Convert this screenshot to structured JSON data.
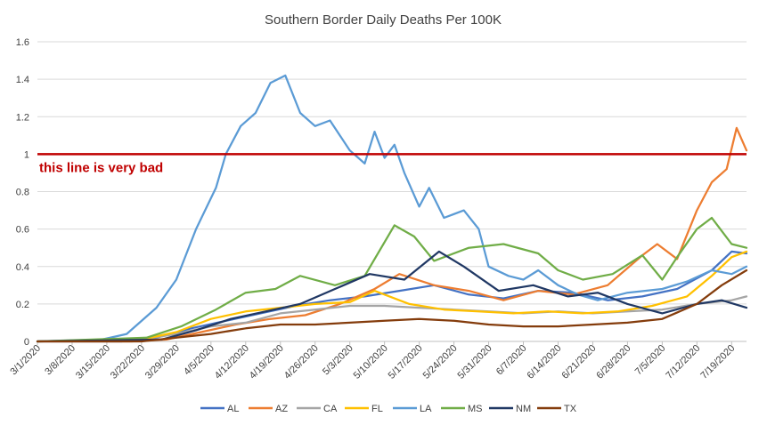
{
  "chart_data": {
    "type": "line",
    "title": "Southern Border Daily Deaths Per 100K",
    "xlabel": "",
    "ylabel": "",
    "ylim": [
      0,
      1.6
    ],
    "y_ticks": [
      "0",
      "0.2",
      "0.4",
      "0.6",
      "0.8",
      "1",
      "1.2",
      "1.4",
      "1.6"
    ],
    "x_start": "2020-03-01",
    "x_end": "2020-07-22",
    "x_ticks": [
      "3/1/2020",
      "3/8/2020",
      "3/15/2020",
      "3/22/2020",
      "3/29/2020",
      "4/5/2020",
      "4/12/2020",
      "4/19/2020",
      "4/26/2020",
      "5/3/2020",
      "5/10/2020",
      "5/17/2020",
      "5/24/2020",
      "5/31/2020",
      "6/7/2020",
      "6/14/2020",
      "6/21/2020",
      "6/28/2020",
      "7/5/2020",
      "7/12/2020",
      "7/19/2020"
    ],
    "grid": "horizontal",
    "legend_position": "bottom",
    "reference_line": {
      "y": 1,
      "label": "this line is very bad",
      "color": "#c00000"
    },
    "series": [
      {
        "name": "AL",
        "color": "#4472c4",
        "points": [
          [
            "2020-03-01",
            0
          ],
          [
            "2020-03-18",
            0
          ],
          [
            "2020-03-25",
            0.02
          ],
          [
            "2020-04-01",
            0.07
          ],
          [
            "2020-04-08",
            0.11
          ],
          [
            "2020-04-15",
            0.15
          ],
          [
            "2020-04-22",
            0.19
          ],
          [
            "2020-04-29",
            0.22
          ],
          [
            "2020-05-06",
            0.24
          ],
          [
            "2020-05-13",
            0.27
          ],
          [
            "2020-05-20",
            0.3
          ],
          [
            "2020-05-27",
            0.25
          ],
          [
            "2020-06-03",
            0.23
          ],
          [
            "2020-06-10",
            0.27
          ],
          [
            "2020-06-17",
            0.26
          ],
          [
            "2020-06-24",
            0.22
          ],
          [
            "2020-07-01",
            0.24
          ],
          [
            "2020-07-08",
            0.28
          ],
          [
            "2020-07-15",
            0.38
          ],
          [
            "2020-07-19",
            0.48
          ],
          [
            "2020-07-22",
            0.47
          ]
        ]
      },
      {
        "name": "AZ",
        "color": "#ed7d31",
        "points": [
          [
            "2020-03-01",
            0
          ],
          [
            "2020-03-20",
            0
          ],
          [
            "2020-03-27",
            0.01
          ],
          [
            "2020-04-03",
            0.05
          ],
          [
            "2020-04-10",
            0.09
          ],
          [
            "2020-04-17",
            0.12
          ],
          [
            "2020-04-24",
            0.14
          ],
          [
            "2020-05-01",
            0.2
          ],
          [
            "2020-05-08",
            0.28
          ],
          [
            "2020-05-13",
            0.36
          ],
          [
            "2020-05-20",
            0.3
          ],
          [
            "2020-05-27",
            0.27
          ],
          [
            "2020-06-03",
            0.22
          ],
          [
            "2020-06-10",
            0.27
          ],
          [
            "2020-06-17",
            0.25
          ],
          [
            "2020-06-24",
            0.3
          ],
          [
            "2020-07-01",
            0.46
          ],
          [
            "2020-07-04",
            0.52
          ],
          [
            "2020-07-08",
            0.44
          ],
          [
            "2020-07-12",
            0.7
          ],
          [
            "2020-07-15",
            0.85
          ],
          [
            "2020-07-18",
            0.92
          ],
          [
            "2020-07-20",
            1.14
          ],
          [
            "2020-07-22",
            1.02
          ]
        ]
      },
      {
        "name": "CA",
        "color": "#a5a5a5",
        "points": [
          [
            "2020-03-01",
            0
          ],
          [
            "2020-03-22",
            0.01
          ],
          [
            "2020-03-29",
            0.04
          ],
          [
            "2020-04-05",
            0.08
          ],
          [
            "2020-04-12",
            0.1
          ],
          [
            "2020-04-19",
            0.15
          ],
          [
            "2020-04-26",
            0.17
          ],
          [
            "2020-05-03",
            0.19
          ],
          [
            "2020-05-10",
            0.19
          ],
          [
            "2020-05-17",
            0.18
          ],
          [
            "2020-05-24",
            0.17
          ],
          [
            "2020-05-31",
            0.16
          ],
          [
            "2020-06-07",
            0.15
          ],
          [
            "2020-06-14",
            0.16
          ],
          [
            "2020-06-21",
            0.15
          ],
          [
            "2020-06-28",
            0.16
          ],
          [
            "2020-07-05",
            0.17
          ],
          [
            "2020-07-12",
            0.2
          ],
          [
            "2020-07-19",
            0.22
          ],
          [
            "2020-07-22",
            0.24
          ]
        ]
      },
      {
        "name": "FL",
        "color": "#ffc000",
        "points": [
          [
            "2020-03-01",
            0
          ],
          [
            "2020-03-22",
            0.01
          ],
          [
            "2020-03-29",
            0.05
          ],
          [
            "2020-04-05",
            0.12
          ],
          [
            "2020-04-12",
            0.16
          ],
          [
            "2020-04-19",
            0.18
          ],
          [
            "2020-04-26",
            0.2
          ],
          [
            "2020-05-03",
            0.21
          ],
          [
            "2020-05-08",
            0.27
          ],
          [
            "2020-05-15",
            0.2
          ],
          [
            "2020-05-22",
            0.17
          ],
          [
            "2020-05-29",
            0.16
          ],
          [
            "2020-06-05",
            0.15
          ],
          [
            "2020-06-12",
            0.16
          ],
          [
            "2020-06-19",
            0.15
          ],
          [
            "2020-06-26",
            0.16
          ],
          [
            "2020-07-03",
            0.19
          ],
          [
            "2020-07-10",
            0.24
          ],
          [
            "2020-07-15",
            0.35
          ],
          [
            "2020-07-19",
            0.45
          ],
          [
            "2020-07-22",
            0.48
          ]
        ]
      },
      {
        "name": "LA",
        "color": "#5b9bd5",
        "points": [
          [
            "2020-03-01",
            0
          ],
          [
            "2020-03-14",
            0.01
          ],
          [
            "2020-03-19",
            0.04
          ],
          [
            "2020-03-25",
            0.18
          ],
          [
            "2020-03-29",
            0.33
          ],
          [
            "2020-04-02",
            0.6
          ],
          [
            "2020-04-06",
            0.82
          ],
          [
            "2020-04-08",
            1.0
          ],
          [
            "2020-04-11",
            1.15
          ],
          [
            "2020-04-14",
            1.22
          ],
          [
            "2020-04-17",
            1.38
          ],
          [
            "2020-04-20",
            1.42
          ],
          [
            "2020-04-23",
            1.22
          ],
          [
            "2020-04-26",
            1.15
          ],
          [
            "2020-04-29",
            1.18
          ],
          [
            "2020-05-03",
            1.02
          ],
          [
            "2020-05-06",
            0.95
          ],
          [
            "2020-05-08",
            1.12
          ],
          [
            "2020-05-10",
            0.98
          ],
          [
            "2020-05-12",
            1.05
          ],
          [
            "2020-05-14",
            0.9
          ],
          [
            "2020-05-17",
            0.72
          ],
          [
            "2020-05-19",
            0.82
          ],
          [
            "2020-05-22",
            0.66
          ],
          [
            "2020-05-26",
            0.7
          ],
          [
            "2020-05-29",
            0.6
          ],
          [
            "2020-05-31",
            0.4
          ],
          [
            "2020-06-04",
            0.35
          ],
          [
            "2020-06-07",
            0.33
          ],
          [
            "2020-06-10",
            0.38
          ],
          [
            "2020-06-14",
            0.3
          ],
          [
            "2020-06-18",
            0.25
          ],
          [
            "2020-06-22",
            0.22
          ],
          [
            "2020-06-28",
            0.26
          ],
          [
            "2020-07-05",
            0.28
          ],
          [
            "2020-07-10",
            0.32
          ],
          [
            "2020-07-15",
            0.38
          ],
          [
            "2020-07-19",
            0.36
          ],
          [
            "2020-07-22",
            0.4
          ]
        ]
      },
      {
        "name": "MS",
        "color": "#70ad47",
        "points": [
          [
            "2020-03-01",
            0
          ],
          [
            "2020-03-23",
            0.02
          ],
          [
            "2020-03-30",
            0.08
          ],
          [
            "2020-04-06",
            0.17
          ],
          [
            "2020-04-12",
            0.26
          ],
          [
            "2020-04-18",
            0.28
          ],
          [
            "2020-04-23",
            0.35
          ],
          [
            "2020-04-30",
            0.3
          ],
          [
            "2020-05-06",
            0.35
          ],
          [
            "2020-05-12",
            0.62
          ],
          [
            "2020-05-16",
            0.56
          ],
          [
            "2020-05-20",
            0.43
          ],
          [
            "2020-05-27",
            0.5
          ],
          [
            "2020-06-03",
            0.52
          ],
          [
            "2020-06-10",
            0.47
          ],
          [
            "2020-06-14",
            0.38
          ],
          [
            "2020-06-19",
            0.33
          ],
          [
            "2020-06-25",
            0.36
          ],
          [
            "2020-07-01",
            0.46
          ],
          [
            "2020-07-05",
            0.33
          ],
          [
            "2020-07-08",
            0.45
          ],
          [
            "2020-07-12",
            0.6
          ],
          [
            "2020-07-15",
            0.66
          ],
          [
            "2020-07-19",
            0.52
          ],
          [
            "2020-07-22",
            0.5
          ]
        ]
      },
      {
        "name": "NM",
        "color": "#203864",
        "points": [
          [
            "2020-03-01",
            0
          ],
          [
            "2020-03-26",
            0.01
          ],
          [
            "2020-04-02",
            0.06
          ],
          [
            "2020-04-09",
            0.12
          ],
          [
            "2020-04-16",
            0.16
          ],
          [
            "2020-04-23",
            0.2
          ],
          [
            "2020-04-30",
            0.28
          ],
          [
            "2020-05-07",
            0.36
          ],
          [
            "2020-05-14",
            0.33
          ],
          [
            "2020-05-21",
            0.48
          ],
          [
            "2020-05-26",
            0.4
          ],
          [
            "2020-06-02",
            0.27
          ],
          [
            "2020-06-09",
            0.3
          ],
          [
            "2020-06-16",
            0.24
          ],
          [
            "2020-06-22",
            0.26
          ],
          [
            "2020-06-28",
            0.2
          ],
          [
            "2020-07-05",
            0.15
          ],
          [
            "2020-07-12",
            0.2
          ],
          [
            "2020-07-17",
            0.22
          ],
          [
            "2020-07-22",
            0.18
          ]
        ]
      },
      {
        "name": "TX",
        "color": "#843c0c",
        "points": [
          [
            "2020-03-01",
            0
          ],
          [
            "2020-03-22",
            0
          ],
          [
            "2020-03-29",
            0.02
          ],
          [
            "2020-04-05",
            0.04
          ],
          [
            "2020-04-12",
            0.07
          ],
          [
            "2020-04-19",
            0.09
          ],
          [
            "2020-04-26",
            0.09
          ],
          [
            "2020-05-03",
            0.1
          ],
          [
            "2020-05-10",
            0.11
          ],
          [
            "2020-05-17",
            0.12
          ],
          [
            "2020-05-24",
            0.11
          ],
          [
            "2020-05-31",
            0.09
          ],
          [
            "2020-06-07",
            0.08
          ],
          [
            "2020-06-14",
            0.08
          ],
          [
            "2020-06-21",
            0.09
          ],
          [
            "2020-06-28",
            0.1
          ],
          [
            "2020-07-05",
            0.12
          ],
          [
            "2020-07-12",
            0.2
          ],
          [
            "2020-07-17",
            0.3
          ],
          [
            "2020-07-22",
            0.38
          ]
        ]
      }
    ]
  }
}
